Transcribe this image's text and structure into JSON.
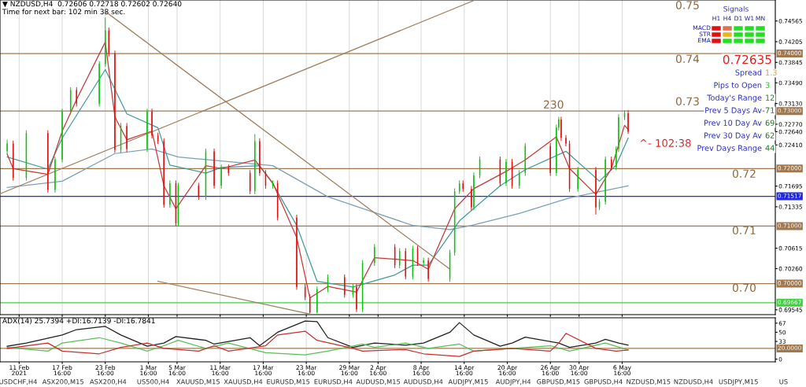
{
  "chart_data": [
    {
      "type": "candlestick",
      "title": "▼ NZDUSD,H4  0.72606 0.72718 0.72602 0.72640",
      "subtitle": "Time for next bar: 102 min 38 sec.",
      "x": [
        "2021-02-10T00:00",
        "2021-02-10T20:00",
        "2021-02-12T16:00",
        "2021-02-15T16:00",
        "2021-02-16T16:00",
        "2021-02-17T16:00",
        "2021-02-18T20:00",
        "2021-02-19T16:00",
        "2021-02-22T20:00",
        "2021-02-23T16:00",
        "2021-02-24T04:00",
        "2021-02-25T00:00",
        "2021-02-25T20:00",
        "2021-02-26T16:00",
        "2021-03-01T12:00",
        "2021-03-02T04:00",
        "2021-03-03T00:00",
        "2021-03-03T20:00",
        "2021-03-04T16:00",
        "2021-03-05T12:00",
        "2021-03-05T20:00",
        "2021-03-08T16:00",
        "2021-03-09T16:00",
        "2021-03-10T20:00",
        "2021-03-11T20:00",
        "2021-03-12T20:00",
        "2021-03-15T20:00",
        "2021-03-16T12:00",
        "2021-03-17T04:00",
        "2021-03-18T00:00",
        "2021-03-19T00:00",
        "2021-03-19T16:00",
        "2021-03-22T08:00",
        "2021-03-23T12:00",
        "2021-03-24T04:00",
        "2021-03-25T04:00",
        "2021-03-26T16:00",
        "2021-03-29T00:00",
        "2021-03-30T04:00",
        "2021-03-30T16:00",
        "2021-03-31T12:00",
        "2021-04-02T04:00",
        "2021-04-05T00:00",
        "2021-04-05T16:00",
        "2021-04-06T12:00",
        "2021-04-07T12:00",
        "2021-04-08T04:00",
        "2021-04-09T00:00",
        "2021-04-09T16:00",
        "2021-04-12T16:00",
        "2021-04-13T08:00",
        "2021-04-14T00:00",
        "2021-04-14T12:00",
        "2021-04-15T16:00",
        "2021-04-16T00:00",
        "2021-04-16T20:00",
        "2021-04-19T16:00",
        "2021-04-20T12:00",
        "2021-04-21T08:00",
        "2021-04-22T08:00",
        "2021-04-23T04:00",
        "2021-04-26T16:00",
        "2021-04-27T12:00",
        "2021-04-27T20:00",
        "2021-04-28T04:00",
        "2021-04-28T20:00",
        "2021-04-29T08:00",
        "2021-04-30T12:00",
        "2021-05-03T00:00",
        "2021-05-03T12:00",
        "2021-05-04T08:00",
        "2021-05-05T04:00",
        "2021-05-05T20:00",
        "2021-05-06T04:00",
        "2021-05-07T00:00",
        "2021-05-07T12:00"
      ],
      "ohlc": [
        [
          0.723,
          0.725,
          0.7225,
          0.72435
        ],
        [
          0.72435,
          0.72485,
          0.7179,
          0.7184
        ],
        [
          0.7184,
          0.72665,
          0.7179,
          0.72615
        ],
        [
          0.72615,
          0.72665,
          0.71582,
          0.71632
        ],
        [
          0.71632,
          0.72208,
          0.71582,
          0.72158
        ],
        [
          0.72158,
          0.73039,
          0.72108,
          0.72989
        ],
        [
          0.72989,
          0.73413,
          0.72939,
          0.73363
        ],
        [
          0.73363,
          0.73413,
          0.73078,
          0.73128
        ],
        [
          0.73128,
          0.7387,
          0.73078,
          0.7382
        ],
        [
          0.7382,
          0.74623,
          0.7377,
          0.744
        ],
        [
          0.744,
          0.7445,
          0.7395,
          0.74
        ],
        [
          0.74,
          0.7405,
          0.72274,
          0.72324
        ],
        [
          0.72324,
          0.7279,
          0.72274,
          0.7274
        ],
        [
          0.7274,
          0.7279,
          0.72288,
          0.72338
        ],
        [
          0.72338,
          0.73039,
          0.72288,
          0.72989
        ],
        [
          0.72989,
          0.73039,
          0.72524,
          0.72574
        ],
        [
          0.72574,
          0.72624,
          0.72427,
          0.72477
        ],
        [
          0.72477,
          0.72527,
          0.71319,
          0.71369
        ],
        [
          0.71369,
          0.71793,
          0.71319,
          0.71743
        ],
        [
          0.71743,
          0.71793,
          0.71,
          0.7105
        ],
        [
          0.7105,
          0.71751,
          0.71,
          0.71701
        ],
        [
          0.71701,
          0.71751,
          0.71457,
          0.71507
        ],
        [
          0.71507,
          0.72347,
          0.71457,
          0.72297
        ],
        [
          0.72297,
          0.72347,
          0.71651,
          0.71701
        ],
        [
          0.71701,
          0.7207,
          0.71651,
          0.7202
        ],
        [
          0.7202,
          0.7207,
          0.71873,
          0.71923
        ],
        [
          0.71923,
          0.71973,
          0.71554,
          0.71604
        ],
        [
          0.71604,
          0.726,
          0.71554,
          0.72477
        ],
        [
          0.72477,
          0.72527,
          0.71873,
          0.71923
        ],
        [
          0.71923,
          0.71973,
          0.71651,
          0.71701
        ],
        [
          0.71701,
          0.71793,
          0.71651,
          0.71743
        ],
        [
          0.71743,
          0.71793,
          0.71097,
          0.71147
        ],
        [
          0.71147,
          0.71197,
          0.69892,
          0.69942
        ],
        [
          0.69942,
          0.69992,
          0.69712,
          0.69762
        ],
        [
          0.69762,
          0.69812,
          0.6948,
          0.69499
        ],
        [
          0.69499,
          0.6995,
          0.6948,
          0.699
        ],
        [
          0.699,
          0.70158,
          0.6985,
          0.70108
        ],
        [
          0.70108,
          0.70158,
          0.69754,
          0.69804
        ],
        [
          0.69804,
          0.69992,
          0.69754,
          0.69942
        ],
        [
          0.69942,
          0.69992,
          0.69504,
          0.69554
        ],
        [
          0.69554,
          0.70408,
          0.69504,
          0.70358
        ],
        [
          0.70358,
          0.70685,
          0.70308,
          0.70635
        ],
        [
          0.70635,
          0.70685,
          0.70266,
          0.70316
        ],
        [
          0.70316,
          0.70615,
          0.70266,
          0.70565
        ],
        [
          0.70565,
          0.70615,
          0.70072,
          0.70122
        ],
        [
          0.70122,
          0.70657,
          0.70072,
          0.70607
        ],
        [
          0.70607,
          0.70657,
          0.70308,
          0.70358
        ],
        [
          0.70358,
          0.7045,
          0.70308,
          0.704
        ],
        [
          0.704,
          0.7045,
          0.70031,
          0.70081
        ],
        [
          0.70081,
          0.70588,
          0.70031,
          0.70538
        ],
        [
          0.70538,
          0.71654,
          0.70488,
          0.71604
        ],
        [
          0.71604,
          0.71793,
          0.71554,
          0.71743
        ],
        [
          0.71743,
          0.71793,
          0.71596,
          0.71646
        ],
        [
          0.71646,
          0.71696,
          0.71277,
          0.71327
        ],
        [
          0.71327,
          0.71931,
          0.71277,
          0.71881
        ],
        [
          0.71881,
          0.72208,
          0.71831,
          0.72158
        ],
        [
          0.72158,
          0.72208,
          0.71693,
          0.71743
        ],
        [
          0.71743,
          0.72167,
          0.71693,
          0.72117
        ],
        [
          0.72117,
          0.72167,
          0.71651,
          0.71701
        ],
        [
          0.71701,
          0.71973,
          0.71651,
          0.71923
        ],
        [
          0.71923,
          0.72443,
          0.71873,
          0.72393
        ],
        [
          0.72393,
          0.72443,
          0.71873,
          0.71923
        ],
        [
          0.71923,
          0.72762,
          0.71873,
          0.72712
        ],
        [
          0.72712,
          0.729,
          0.72662,
          0.7285
        ],
        [
          0.7285,
          0.729,
          0.72482,
          0.72532
        ],
        [
          0.72532,
          0.72582,
          0.72385,
          0.72435
        ],
        [
          0.72435,
          0.72485,
          0.71596,
          0.71646
        ],
        [
          0.71646,
          0.72028,
          0.71596,
          0.71978
        ],
        [
          0.71978,
          0.72028,
          0.712,
          0.71327
        ],
        [
          0.71327,
          0.71474,
          0.71277,
          0.71424
        ],
        [
          0.71424,
          0.72208,
          0.71374,
          0.72158
        ],
        [
          0.72158,
          0.72208,
          0.7197,
          0.7202
        ],
        [
          0.7202,
          0.72388,
          0.7197,
          0.72338
        ],
        [
          0.72338,
          0.72942,
          0.72288,
          0.72892
        ],
        [
          0.72892,
          0.73011,
          0.72842,
          0.72961
        ],
        [
          0.72961,
          0.73011,
          0.72602,
          0.7264
        ]
      ],
      "series": [
        {
          "type": "line",
          "color": "#7aa0b4",
          "x": [
            "2021-02-10T00:00",
            "2021-02-17T16:00",
            "2021-02-25T00:00",
            "2021-03-02T04:00",
            "2021-03-05T20:00",
            "2021-03-19T00:00",
            "2021-03-26T16:00",
            "2021-04-07T12:00",
            "2021-04-12T16:00",
            "2021-04-15T16:00",
            "2021-04-22T08:00",
            "2021-04-29T08:00",
            "2021-05-07T12:00"
          ],
          "values": [
            0.7167,
            0.7178,
            0.7226,
            0.7234,
            0.722,
            0.7205,
            0.7151,
            0.7101,
            0.7094,
            0.7101,
            0.7122,
            0.7149,
            0.717
          ]
        },
        {
          "type": "line",
          "color": "#3f9a9c",
          "x": [
            "2021-02-10T00:00",
            "2021-02-15T16:00",
            "2021-02-17T16:00",
            "2021-02-23T16:00",
            "2021-02-26T16:00",
            "2021-03-03T00:00",
            "2021-03-04T16:00",
            "2021-03-09T16:00",
            "2021-03-11T20:00",
            "2021-03-17T04:00",
            "2021-03-19T00:00",
            "2021-03-22T08:00",
            "2021-03-25T04:00",
            "2021-03-30T04:00",
            "2021-04-05T00:00",
            "2021-04-07T12:00",
            "2021-04-09T16:00",
            "2021-04-14T00:00",
            "2021-04-19T16:00",
            "2021-04-23T04:00",
            "2021-04-28T20:00",
            "2021-05-03T12:00",
            "2021-05-05T20:00",
            "2021-05-07T12:00"
          ],
          "values": [
            0.722,
            0.7199,
            0.7253,
            0.7372,
            0.7295,
            0.7271,
            0.7206,
            0.7192,
            0.7202,
            0.7205,
            0.7174,
            0.7101,
            0.7004,
            0.6994,
            0.7015,
            0.7032,
            0.7032,
            0.7109,
            0.717,
            0.7198,
            0.723,
            0.7178,
            0.7206,
            0.7253
          ]
        },
        {
          "type": "line",
          "color": "#c83838",
          "x": [
            "2021-02-10T00:00",
            "2021-02-10T20:00",
            "2021-02-15T16:00",
            "2021-02-17T16:00",
            "2021-02-19T16:00",
            "2021-02-23T16:00",
            "2021-02-25T00:00",
            "2021-02-26T16:00",
            "2021-03-02T04:00",
            "2021-03-03T20:00",
            "2021-03-05T12:00",
            "2021-03-09T16:00",
            "2021-03-11T20:00",
            "2021-03-16T12:00",
            "2021-03-19T00:00",
            "2021-03-22T08:00",
            "2021-03-24T04:00",
            "2021-03-26T16:00",
            "2021-03-30T16:00",
            "2021-04-02T04:00",
            "2021-04-07T12:00",
            "2021-04-09T16:00",
            "2021-04-13T08:00",
            "2021-04-16T00:00",
            "2021-04-20T12:00",
            "2021-04-23T04:00",
            "2021-04-27T12:00",
            "2021-04-29T08:00",
            "2021-05-03T00:00",
            "2021-05-05T04:00",
            "2021-05-07T00:00",
            "2021-05-07T12:00"
          ],
          "values": [
            0.7225,
            0.72,
            0.719,
            0.7265,
            0.732,
            0.742,
            0.729,
            0.725,
            0.7265,
            0.717,
            0.713,
            0.7205,
            0.72,
            0.7215,
            0.7175,
            0.708,
            0.6975,
            0.6995,
            0.6985,
            0.7045,
            0.704,
            0.7025,
            0.713,
            0.7165,
            0.7195,
            0.7215,
            0.7255,
            0.72,
            0.7155,
            0.72,
            0.7275,
            0.7268
          ]
        },
        {
          "type": "line",
          "color": "#a08060",
          "x": [
            "2021-02-23T16:00",
            "2021-04-12T16:00"
          ],
          "values": [
            0.7473,
            0.7025
          ]
        },
        {
          "type": "line",
          "color": "#a08060",
          "x": [
            "2021-02-09T00:00",
            "2021-04-16T00:00"
          ],
          "values": [
            0.7156,
            0.7492
          ]
        },
        {
          "type": "line",
          "color": "#a08060",
          "x": [
            "2021-03-03T00:00",
            "2021-03-24T04:00"
          ],
          "values": [
            0.7004,
            0.6947
          ]
        }
      ],
      "xlim": [
        "2021-02-09",
        "2021-05-28"
      ],
      "ylim": [
        0.6946,
        0.7493
      ],
      "xticks": [
        {
          "value": "2021-02-11T16:00",
          "label": null
        },
        {
          "value": "2021-02-17T16:00",
          "label": null
        },
        {
          "value": "2021-02-23T16:00",
          "label": null
        },
        {
          "value": "2021-03-01T16:00",
          "label": null
        },
        {
          "value": "2021-03-05T16:00",
          "label": null
        },
        {
          "value": "2021-03-11T16:00",
          "label": null
        },
        {
          "value": "2021-03-17T16:00",
          "label": null
        },
        {
          "value": "2021-03-23T16:00",
          "label": null
        },
        {
          "value": "2021-03-29T16:00",
          "label": null
        },
        {
          "value": "2021-04-02T16:00",
          "label": null
        },
        {
          "value": "2021-04-08T16:00",
          "label": null
        },
        {
          "value": "2021-04-14T16:00",
          "label": null
        },
        {
          "value": "2021-04-20T16:00",
          "label": null
        },
        {
          "value": "2021-04-26T16:00",
          "label": null
        },
        {
          "value": "2021-04-30T16:00",
          "label": null
        },
        {
          "value": "2021-05-06T16:00",
          "label": null
        }
      ],
      "yticks": [
        0.74565,
        0.74205,
        0.73845,
        {
          "value": 0.7349,
          "label": "0.73490"
        },
        {
          "value": 0.7313,
          "label": "0.73130"
        },
        {
          "value": 0.7277,
          "label": "0.72770"
        },
        {
          "value": 0.7264,
          "label": "0.72640"
        },
        {
          "value": 0.7241,
          "label": "0.72410"
        },
        0.71695,
        0.71335,
        0.70615,
        {
          "value": 0.7026,
          "label": "0.70260"
        },
        0.69545
      ],
      "tick_labels": "y",
      "grid": "x",
      "ref_lines": [
        {
          "axis": "y",
          "value": 0.74,
          "label": "0.74000",
          "color": "#a07850"
        },
        {
          "axis": "y",
          "value": 0.73,
          "label": "0.73000",
          "color": "#a07850"
        },
        {
          "axis": "y",
          "value": 0.72,
          "label": "0.72000",
          "color": "#a07850"
        },
        {
          "axis": "y",
          "value": 0.71,
          "label": "0.71000",
          "color": "#a07850"
        },
        {
          "axis": "y",
          "value": 0.7,
          "label": "0.70000",
          "color": "#a07850"
        },
        {
          "axis": "y",
          "value": 0.71517,
          "label": "0.71517",
          "color": "#2028e0"
        },
        {
          "axis": "y",
          "value": 0.69667,
          "label": "0.69667",
          "color": "#40d040"
        }
      ],
      "annotations": [
        "0.75",
        "0.74",
        "0.73",
        "0.72",
        "0.71",
        "0.70",
        "230",
        "^- 102:38",
        "Signals",
        "H1",
        "H4",
        "D1",
        "W1",
        "MN",
        "MACD",
        "STR",
        "EMA",
        "0.72635",
        "Spread",
        "1.3",
        "Pips to Open",
        "3",
        "Today's Range",
        "12",
        "Prev 5 Days Av",
        "71",
        "Prev 10 Day Av",
        "69",
        "Prev 30 Day Av",
        "62",
        "Prev Days Range",
        "44"
      ]
    },
    {
      "type": "line",
      "title": "ADX(14) 25.7394 +DI:16.7139 -DI:16.7841",
      "series": [
        {
          "color": "#202020",
          "x": [
            "2021-02-10T00:00",
            "2021-02-12T16:00",
            "2021-02-17T16:00",
            "2021-02-19T16:00",
            "2021-02-23T16:00",
            "2021-02-25T20:00",
            "2021-03-01T12:00",
            "2021-03-03T20:00",
            "2021-03-05T12:00",
            "2021-03-09T16:00",
            "2021-03-10T20:00",
            "2021-03-15T20:00",
            "2021-03-17T04:00",
            "2021-03-19T16:00",
            "2021-03-23T12:00",
            "2021-03-25T04:00",
            "2021-03-26T16:00",
            "2021-03-30T04:00",
            "2021-04-02T04:00",
            "2021-04-06T12:00",
            "2021-04-09T00:00",
            "2021-04-12T16:00",
            "2021-04-14T00:00",
            "2021-04-16T00:00",
            "2021-04-19T16:00",
            "2021-04-21T08:00",
            "2021-04-23T04:00",
            "2021-04-27T20:00",
            "2021-04-29T08:00",
            "2021-05-03T00:00",
            "2021-05-04T08:00",
            "2021-05-06T04:00",
            "2021-05-07T12:00"
          ],
          "values": [
            24,
            30,
            45,
            55,
            61,
            45,
            24,
            30,
            42,
            35,
            28,
            40,
            25,
            50,
            71,
            70,
            40,
            22,
            30,
            26,
            30,
            50,
            68,
            45,
            24,
            30,
            41,
            30,
            22,
            30,
            37,
            30,
            26
          ]
        },
        {
          "color": "#58c058",
          "x": [
            "2021-02-10T00:00",
            "2021-02-15T16:00",
            "2021-02-17T16:00",
            "2021-02-22T20:00",
            "2021-02-25T20:00",
            "2021-03-01T12:00",
            "2021-03-03T20:00",
            "2021-03-05T20:00",
            "2021-03-09T16:00",
            "2021-03-12T20:00",
            "2021-03-18T00:00",
            "2021-03-23T12:00",
            "2021-03-26T16:00",
            "2021-03-31T12:00",
            "2021-04-02T04:00",
            "2021-04-06T12:00",
            "2021-04-09T16:00",
            "2021-04-14T00:00",
            "2021-04-16T00:00",
            "2021-04-21T08:00",
            "2021-04-26T16:00",
            "2021-04-29T08:00",
            "2021-05-04T08:00",
            "2021-05-07T12:00"
          ],
          "values": [
            22,
            15,
            30,
            40,
            30,
            15,
            25,
            35,
            20,
            30,
            12,
            8,
            15,
            28,
            22,
            30,
            20,
            28,
            15,
            20,
            25,
            15,
            30,
            17
          ]
        },
        {
          "color": "#c83030",
          "x": [
            "2021-02-10T00:00",
            "2021-02-15T16:00",
            "2021-02-17T16:00",
            "2021-02-22T20:00",
            "2021-02-25T20:00",
            "2021-03-01T12:00",
            "2021-03-03T20:00",
            "2021-03-08T16:00",
            "2021-03-10T20:00",
            "2021-03-12T20:00",
            "2021-03-18T00:00",
            "2021-03-19T16:00",
            "2021-03-23T12:00",
            "2021-03-25T04:00",
            "2021-03-30T04:00",
            "2021-03-31T12:00",
            "2021-04-06T12:00",
            "2021-04-09T00:00",
            "2021-04-14T00:00",
            "2021-04-16T00:00",
            "2021-04-21T08:00",
            "2021-04-26T16:00",
            "2021-04-27T20:00",
            "2021-04-28T20:00",
            "2021-05-03T00:00",
            "2021-05-05T20:00",
            "2021-05-07T12:00"
          ],
          "values": [
            20,
            30,
            15,
            10,
            22,
            30,
            20,
            15,
            25,
            15,
            25,
            45,
            52,
            35,
            20,
            15,
            18,
            10,
            5,
            15,
            20,
            15,
            30,
            48,
            20,
            15,
            17
          ]
        }
      ],
      "xlim": [
        "2021-02-09",
        "2021-05-28"
      ],
      "ylim": [
        -5,
        77
      ],
      "xticks": [
        {
          "value": "2021-02-11T16:00",
          "label": "11 Feb 2021"
        },
        {
          "value": "2021-02-17T16:00",
          "label": "17 Feb 16:00"
        },
        {
          "value": "2021-02-23T16:00",
          "label": "23 Feb 16:00"
        },
        {
          "value": "2021-03-01T16:00",
          "label": "1 Mar 16:00"
        },
        {
          "value": "2021-03-05T16:00",
          "label": "5 Mar 16:00"
        },
        {
          "value": "2021-03-11T16:00",
          "label": "11 Mar 16:00"
        },
        {
          "value": "2021-03-17T16:00",
          "label": "17 Mar 16:00"
        },
        {
          "value": "2021-03-23T16:00",
          "label": "23 Mar 16:00"
        },
        {
          "value": "2021-03-29T16:00",
          "label": "29 Mar 16:00"
        },
        {
          "value": "2021-04-02T16:00",
          "label": "2 Apr 16:00"
        },
        {
          "value": "2021-04-08T16:00",
          "label": "8 Apr 16:00"
        },
        {
          "value": "2021-04-14T16:00",
          "label": "14 Apr 16:00"
        },
        {
          "value": "2021-04-20T16:00",
          "label": "20 Apr 16:00"
        },
        {
          "value": "2021-04-26T16:00",
          "label": "26 Apr 16:00"
        },
        {
          "value": "2021-04-30T16:00",
          "label": "30 Apr 16:00"
        },
        {
          "value": "2021-05-06T16:00",
          "label": "6 May 16:00"
        }
      ],
      "yticks": [
        67,
        50,
        33,
        0
      ],
      "grid": "x",
      "ref_lines": [
        {
          "axis": "y",
          "value": 20,
          "label": "20.0000",
          "color": "#a07850"
        }
      ],
      "annotations": [
        "USDCHF,H4",
        "ASX200,M15",
        "ASX200,H4",
        "US500,H4",
        "XAUUSD,M15",
        "XAUUSD,H4",
        "EURUSD,M15",
        "EURUSD,H4",
        "AUDUSD,M15",
        "AUDUSD,H4",
        "AUDJPY,M15",
        "AUDJPY,H4",
        "GBPUSD,M15",
        "GBPUSD,H4",
        "NZDUSD,M15",
        "NZDUSD,H4",
        "USDJPY,M15",
        "US"
      ]
    }
  ]
}
